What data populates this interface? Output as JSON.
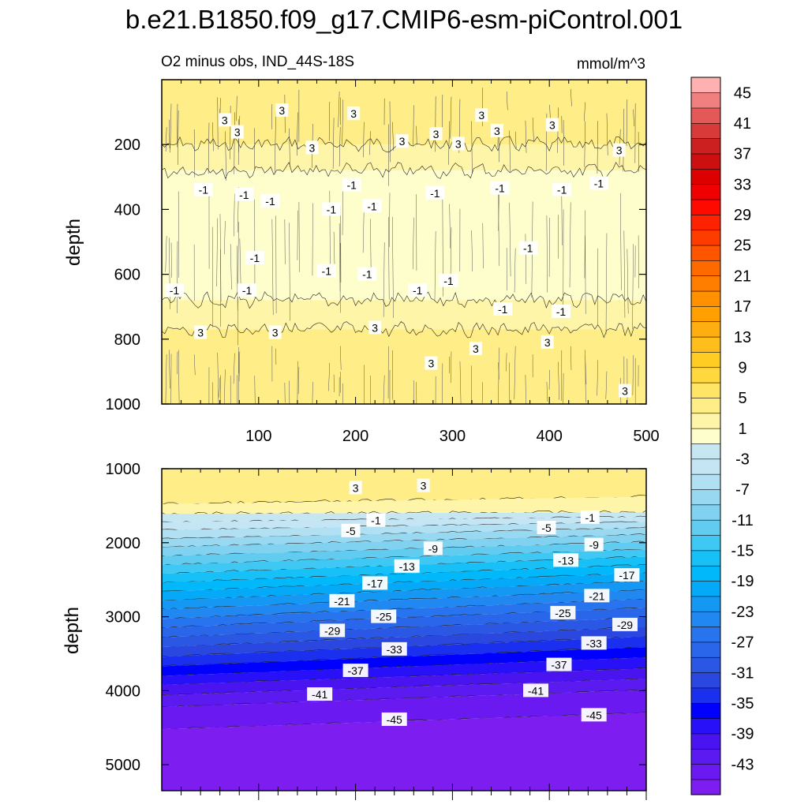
{
  "chart_data": {
    "title": "b.e21.B1850.f09_g17.CMIP6-esm-piControl.001",
    "subtitle": "O2 minus obs, IND_44S-18S",
    "units": "mmol/m^3",
    "type": "heatmap",
    "xlabel": "",
    "ylabel": "depth",
    "xlim": [
      0,
      500
    ],
    "x_ticks": [
      100,
      200,
      300,
      400,
      500
    ],
    "colorbar": {
      "levels": [
        -47,
        -45,
        -43,
        -41,
        -39,
        -37,
        -35,
        -33,
        -31,
        -29,
        -27,
        -25,
        -23,
        -21,
        -19,
        -17,
        -15,
        -13,
        -11,
        -9,
        -7,
        -5,
        -3,
        -1,
        1,
        3,
        5,
        7,
        9,
        11,
        13,
        15,
        17,
        19,
        21,
        23,
        25,
        27,
        29,
        31,
        33,
        35,
        37,
        39,
        41,
        43,
        45,
        47
      ],
      "tick_labels": [
        "45",
        "41",
        "37",
        "33",
        "29",
        "25",
        "21",
        "17",
        "13",
        "9",
        "5",
        "1",
        "-3",
        "-7",
        "-11",
        "-15",
        "-19",
        "-23",
        "-27",
        "-31",
        "-35",
        "-39",
        "-43"
      ],
      "colors": [
        "#7d1df0",
        "#6a1af0",
        "#5a1af0",
        "#4a14f0",
        "#2810f8",
        "#0000ff",
        "#1a30ee",
        "#2a48e0",
        "#2a58e4",
        "#2a66ea",
        "#2874ee",
        "#2088f0",
        "#1498f4",
        "#04aaf8",
        "#00b8fa",
        "#18c0f8",
        "#40c8f4",
        "#62ccf0",
        "#80d2f0",
        "#98d8f0",
        "#b0e0f2",
        "#c4e6f4",
        "#c6e6f2",
        "#fefecc",
        "#fff5a8",
        "#ffee88",
        "#ffe566",
        "#ffd840",
        "#ffcc24",
        "#ffbe1c",
        "#ffae10",
        "#ffa000",
        "#ff9000",
        "#ff7e00",
        "#ff6a00",
        "#ff5400",
        "#ff3c00",
        "#ff2200",
        "#ff0a00",
        "#f00000",
        "#dc0000",
        "#cc1010",
        "#cc2020",
        "#d83a3a",
        "#e45858",
        "#f08080",
        "#ffb0b0"
      ]
    },
    "panels": [
      {
        "name": "upper",
        "ylim": [
          1000,
          0
        ],
        "y_ticks": [
          200,
          400,
          600,
          800,
          1000
        ],
        "zones": [
          {
            "top": 0,
            "bottom": 200,
            "value": 4,
            "label": "3"
          },
          {
            "top": 200,
            "bottom": 280,
            "value": 2,
            "label": "1"
          },
          {
            "top": 280,
            "bottom": 680,
            "value": -1,
            "label": "-1"
          },
          {
            "top": 680,
            "bottom": 770,
            "value": 2,
            "label": "1"
          },
          {
            "top": 770,
            "bottom": 1000,
            "value": 4,
            "label": "3"
          }
        ],
        "contour_labels": [
          {
            "x": 65,
            "y": 125,
            "text": "3"
          },
          {
            "x": 124,
            "y": 95,
            "text": "3"
          },
          {
            "x": 198,
            "y": 105,
            "text": "3"
          },
          {
            "x": 283,
            "y": 168,
            "text": "3"
          },
          {
            "x": 330,
            "y": 110,
            "text": "3"
          },
          {
            "x": 403,
            "y": 140,
            "text": "3"
          },
          {
            "x": 78,
            "y": 162,
            "text": "3"
          },
          {
            "x": 155,
            "y": 210,
            "text": "3"
          },
          {
            "x": 248,
            "y": 190,
            "text": "3"
          },
          {
            "x": 306,
            "y": 198,
            "text": "3"
          },
          {
            "x": 346,
            "y": 158,
            "text": "3"
          },
          {
            "x": 472,
            "y": 218,
            "text": "3"
          },
          {
            "x": 43,
            "y": 340,
            "text": "-1"
          },
          {
            "x": 85,
            "y": 355,
            "text": "-1"
          },
          {
            "x": 112,
            "y": 375,
            "text": "-1"
          },
          {
            "x": 196,
            "y": 325,
            "text": "-1"
          },
          {
            "x": 175,
            "y": 400,
            "text": "-1"
          },
          {
            "x": 217,
            "y": 390,
            "text": "-1"
          },
          {
            "x": 282,
            "y": 350,
            "text": "-1"
          },
          {
            "x": 349,
            "y": 335,
            "text": "-1"
          },
          {
            "x": 413,
            "y": 340,
            "text": "-1"
          },
          {
            "x": 451,
            "y": 320,
            "text": "-1"
          },
          {
            "x": 378,
            "y": 520,
            "text": "-1"
          },
          {
            "x": 96,
            "y": 550,
            "text": "-1"
          },
          {
            "x": 170,
            "y": 590,
            "text": "-1"
          },
          {
            "x": 212,
            "y": 600,
            "text": "-1"
          },
          {
            "x": 264,
            "y": 650,
            "text": "-1"
          },
          {
            "x": 296,
            "y": 620,
            "text": "-1"
          },
          {
            "x": 13,
            "y": 650,
            "text": "-1"
          },
          {
            "x": 88,
            "y": 650,
            "text": "-1"
          },
          {
            "x": 352,
            "y": 708,
            "text": "-1"
          },
          {
            "x": 412,
            "y": 715,
            "text": "-1"
          },
          {
            "x": 40,
            "y": 780,
            "text": "3"
          },
          {
            "x": 117,
            "y": 780,
            "text": "3"
          },
          {
            "x": 220,
            "y": 765,
            "text": "3"
          },
          {
            "x": 324,
            "y": 830,
            "text": "3"
          },
          {
            "x": 278,
            "y": 875,
            "text": "3"
          },
          {
            "x": 398,
            "y": 810,
            "text": "3"
          },
          {
            "x": 478,
            "y": 960,
            "text": "3"
          }
        ]
      },
      {
        "name": "lower",
        "ylim": [
          5350,
          1000
        ],
        "y_ticks": [
          1000,
          2000,
          3000,
          4000,
          5000
        ],
        "levels_depth": [
          {
            "value": 4,
            "top": 1000,
            "bottom_left": 1480,
            "bottom_right": 1380
          },
          {
            "value": 2,
            "top": 1480,
            "bottom_left": 1610,
            "bottom_right": 1590
          },
          {
            "value": -2,
            "bottom_left": 1720,
            "bottom_right": 1650
          },
          {
            "value": -4,
            "bottom_left": 1830,
            "bottom_right": 1720
          },
          {
            "value": -6,
            "bottom_left": 1950,
            "bottom_right": 1800
          },
          {
            "value": -8,
            "bottom_left": 2060,
            "bottom_right": 1890
          },
          {
            "value": -10,
            "bottom_left": 2180,
            "bottom_right": 1990
          },
          {
            "value": -12,
            "bottom_left": 2300,
            "bottom_right": 2090
          },
          {
            "value": -14,
            "bottom_left": 2420,
            "bottom_right": 2190
          },
          {
            "value": -16,
            "bottom_left": 2540,
            "bottom_right": 2300
          },
          {
            "value": -18,
            "bottom_left": 2660,
            "bottom_right": 2410
          },
          {
            "value": -20,
            "bottom_left": 2780,
            "bottom_right": 2520
          },
          {
            "value": -22,
            "bottom_left": 2900,
            "bottom_right": 2640
          },
          {
            "value": -24,
            "bottom_left": 3030,
            "bottom_right": 2760
          },
          {
            "value": -26,
            "bottom_left": 3150,
            "bottom_right": 2880
          },
          {
            "value": -28,
            "bottom_left": 3280,
            "bottom_right": 3010
          },
          {
            "value": -30,
            "bottom_left": 3410,
            "bottom_right": 3140
          },
          {
            "value": -32,
            "bottom_left": 3540,
            "bottom_right": 3270
          },
          {
            "value": -34,
            "bottom_left": 3670,
            "bottom_right": 3410
          },
          {
            "value": -36,
            "bottom_left": 3800,
            "bottom_right": 3550
          },
          {
            "value": -38,
            "bottom_left": 3920,
            "bottom_right": 3700
          },
          {
            "value": -40,
            "bottom_left": 4060,
            "bottom_right": 3840
          },
          {
            "value": -42,
            "bottom_left": 4220,
            "bottom_right": 3990
          },
          {
            "value": -44,
            "bottom_left": 4520,
            "bottom_right": 4300
          },
          {
            "value": -46,
            "bottom_left": 5350,
            "bottom_right": 5350
          }
        ],
        "contour_labels": [
          {
            "x": 200,
            "y": 1260,
            "text": "3"
          },
          {
            "x": 270,
            "y": 1230,
            "text": "3"
          },
          {
            "x": 221,
            "y": 1700,
            "text": "-1"
          },
          {
            "x": 442,
            "y": 1660,
            "text": "-1"
          },
          {
            "x": 195,
            "y": 1840,
            "text": "-5"
          },
          {
            "x": 397,
            "y": 1800,
            "text": "-5"
          },
          {
            "x": 280,
            "y": 2080,
            "text": "-9"
          },
          {
            "x": 446,
            "y": 2030,
            "text": "-9"
          },
          {
            "x": 253,
            "y": 2320,
            "text": "-13"
          },
          {
            "x": 417,
            "y": 2240,
            "text": "-13"
          },
          {
            "x": 220,
            "y": 2550,
            "text": "-17"
          },
          {
            "x": 480,
            "y": 2440,
            "text": "-17"
          },
          {
            "x": 186,
            "y": 2790,
            "text": "-21"
          },
          {
            "x": 449,
            "y": 2720,
            "text": "-21"
          },
          {
            "x": 229,
            "y": 3000,
            "text": "-25"
          },
          {
            "x": 414,
            "y": 2950,
            "text": "-25"
          },
          {
            "x": 176,
            "y": 3190,
            "text": "-29"
          },
          {
            "x": 478,
            "y": 3110,
            "text": "-29"
          },
          {
            "x": 240,
            "y": 3440,
            "text": "-33"
          },
          {
            "x": 446,
            "y": 3360,
            "text": "-33"
          },
          {
            "x": 200,
            "y": 3730,
            "text": "-37"
          },
          {
            "x": 410,
            "y": 3650,
            "text": "-37"
          },
          {
            "x": 163,
            "y": 4050,
            "text": "-41"
          },
          {
            "x": 386,
            "y": 4000,
            "text": "-41"
          },
          {
            "x": 240,
            "y": 4390,
            "text": "-45"
          },
          {
            "x": 446,
            "y": 4330,
            "text": "-45"
          }
        ]
      }
    ]
  }
}
